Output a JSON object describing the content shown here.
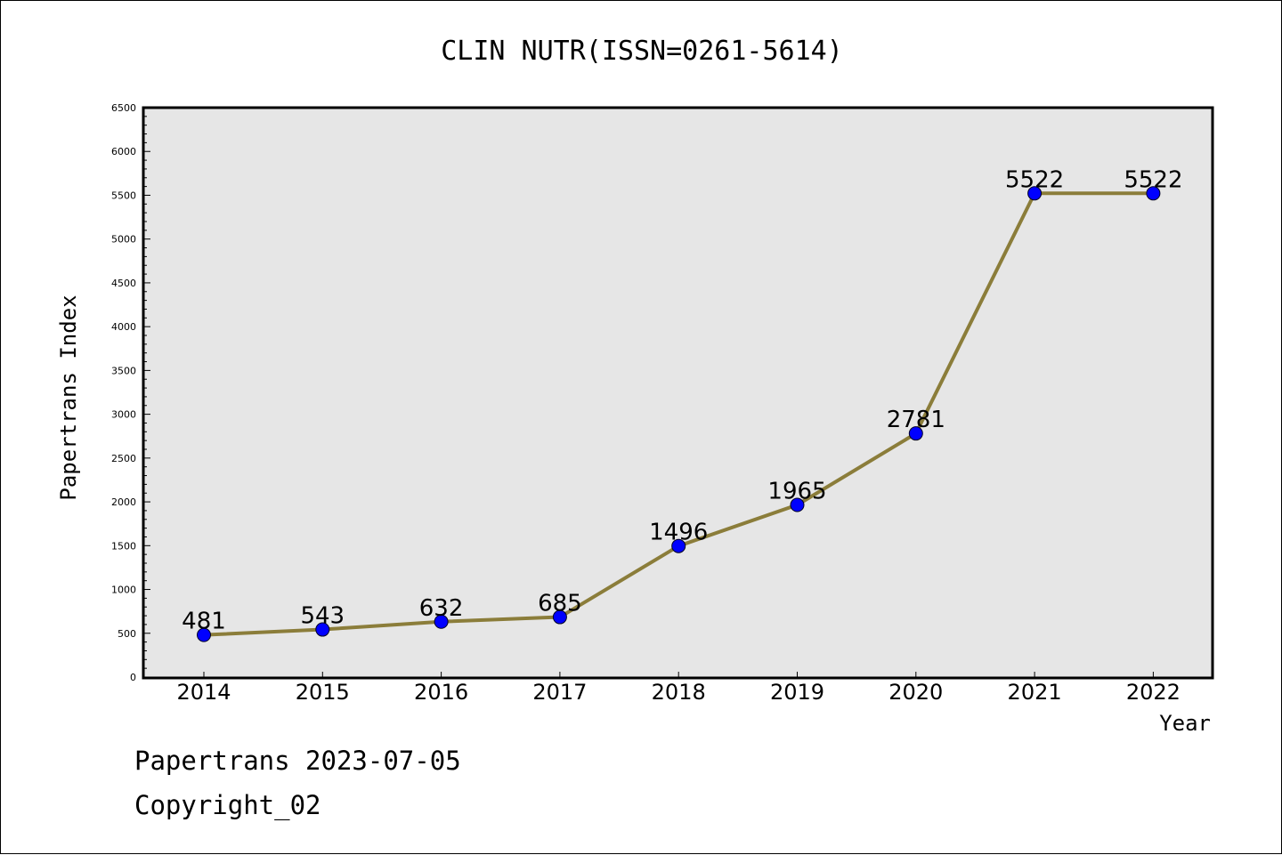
{
  "chart_data": {
    "type": "line",
    "title": "CLIN NUTR(ISSN=0261-5614)",
    "xlabel": "Year",
    "ylabel": "Papertrans Index",
    "x": [
      "2014",
      "2015",
      "2016",
      "2017",
      "2018",
      "2019",
      "2020",
      "2021",
      "2022"
    ],
    "series": [
      {
        "name": "Papertrans Index",
        "values": [
          481,
          543,
          632,
          685,
          1496,
          1965,
          2781,
          5522,
          5522
        ],
        "data_labels": [
          "481",
          "543",
          "632",
          "685",
          "1496",
          "1965",
          "2781",
          "5522",
          "5522"
        ]
      }
    ],
    "ylim": [
      0,
      6500
    ],
    "yticks": [
      "0",
      "500",
      "1000",
      "1500",
      "2000",
      "2500",
      "3000",
      "3500",
      "4000",
      "4500",
      "5000",
      "5500",
      "6000",
      "6500"
    ],
    "grid": false,
    "colors": {
      "line": "#8b7d3a",
      "marker": "#0000ff",
      "plot_background": "#e6e6e6"
    }
  },
  "footer": {
    "line1": "Papertrans 2023-07-05",
    "line2": "Copyright_02"
  }
}
